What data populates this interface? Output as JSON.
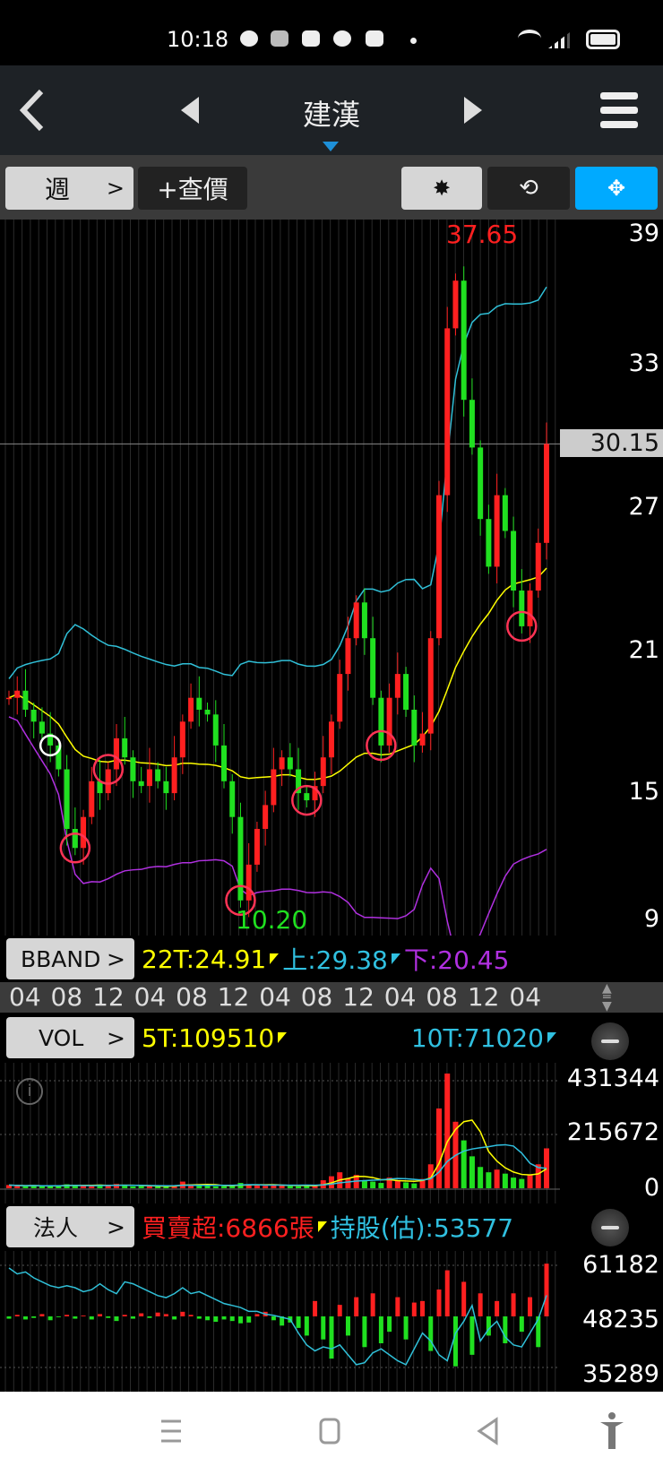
{
  "status_bar": {
    "time": "10:18",
    "icons": [
      "line-icon",
      "cloud-icon",
      "youtube-icon",
      "game-icon",
      "chat-icon",
      "dot-icon"
    ],
    "right_icons": [
      "wifi-icon",
      "signal-icon",
      "battery-icon"
    ]
  },
  "nav": {
    "title": "建漢",
    "back": "back-icon",
    "prev": "prev-stock-icon",
    "next": "next-stock-icon",
    "menu": "menu-icon"
  },
  "toolbar": {
    "period": "週",
    "quote": "+查價",
    "settings": "gear-icon",
    "rotate": "rotate-icon",
    "fullscreen": "fullscreen-icon",
    "accent": "#00aaff"
  },
  "bband": {
    "label": "BBAND",
    "mid": "22T:24.91",
    "upper": "上:29.38",
    "lower": "下:20.45"
  },
  "vol": {
    "label": "VOL",
    "ma5": "5T:109510",
    "ma10": "10T:71020"
  },
  "inst": {
    "label": "法人",
    "net": "買賣超:6866張",
    "holding": "持股(估):53577"
  },
  "date_axis": [
    "04",
    "08",
    "12",
    "04",
    "08",
    "12",
    "04",
    "08",
    "12",
    "04",
    "08",
    "12",
    "04"
  ],
  "chart_data": [
    {
      "type": "candlestick",
      "name": "price",
      "y_ticks": [
        "39",
        "33",
        "27",
        "21",
        "15",
        "9"
      ],
      "ylim": [
        9,
        39.5
      ],
      "high_label": "37.65",
      "low_label": "10.20",
      "current": "30.15",
      "close": [
        19.5,
        19.8,
        19,
        18.5,
        18,
        17.5,
        16.5,
        14,
        13.2,
        14.5,
        16,
        15.5,
        16.5,
        17.8,
        17,
        16,
        15.8,
        16.5,
        16,
        15.5,
        17,
        18.5,
        19.5,
        19,
        18.8,
        17.5,
        16,
        14.5,
        11,
        12.5,
        14,
        15,
        16.5,
        17,
        16.5,
        15.5,
        15.2,
        15.8,
        17,
        18.5,
        20.5,
        22,
        23.5,
        22,
        19.5,
        17.5,
        19.5,
        20.5,
        19,
        17.5,
        18,
        22,
        28,
        35,
        37,
        32,
        30,
        27,
        25,
        28,
        26.5,
        24,
        22.5,
        24,
        26,
        30.15
      ],
      "markers": [
        {
          "index": 5,
          "color": "#ffffff"
        },
        {
          "index": 8,
          "color": "#ff3355"
        },
        {
          "index": 12,
          "color": "#ff3355"
        },
        {
          "index": 28,
          "color": "#ff3355"
        },
        {
          "index": 36,
          "color": "#ff3355"
        },
        {
          "index": 45,
          "color": "#ff3355"
        },
        {
          "index": 62,
          "color": "#ff3355"
        }
      ],
      "colors": {
        "up": "#ff2020",
        "down": "#20e020",
        "mid": "#ffff00",
        "upper": "#30c0d8",
        "lower": "#b030e0"
      }
    },
    {
      "type": "bar",
      "name": "volume",
      "y_ticks": [
        "431344",
        "215672",
        "0"
      ],
      "ylim": [
        0,
        431344
      ],
      "values": [
        12000,
        9000,
        8000,
        11000,
        7000,
        9000,
        10000,
        15000,
        12000,
        9000,
        8000,
        14000,
        10000,
        16000,
        9000,
        7000,
        8000,
        9000,
        7000,
        6000,
        11000,
        25000,
        14000,
        12000,
        9000,
        7000,
        8000,
        12000,
        20000,
        15000,
        10000,
        9000,
        14000,
        12000,
        8000,
        7000,
        9000,
        11000,
        30000,
        45000,
        60000,
        38000,
        50000,
        28000,
        25000,
        20000,
        40000,
        30000,
        22000,
        18000,
        35000,
        90000,
        300000,
        431344,
        250000,
        180000,
        120000,
        80000,
        60000,
        70000,
        55000,
        40000,
        35000,
        50000,
        90000,
        150000
      ]
    },
    {
      "type": "bar+line",
      "name": "institutional",
      "y_ticks": [
        "61182",
        "48235",
        "35289"
      ],
      "ylim": [
        35289,
        61182
      ],
      "holding": [
        60500,
        59000,
        59500,
        58000,
        57000,
        56000,
        55500,
        56000,
        55500,
        54500,
        55000,
        56500,
        55000,
        54000,
        57000,
        56500,
        55500,
        54500,
        53500,
        53000,
        54000,
        55500,
        54000,
        54500,
        53500,
        52500,
        51500,
        51000,
        50500,
        49500,
        49500,
        48800,
        48500,
        48000,
        47500,
        44000,
        41000,
        39500,
        40500,
        40000,
        41000,
        38500,
        36000,
        36500,
        39000,
        40000,
        38500,
        37000,
        36000,
        40000,
        44000,
        42000,
        38500,
        37000,
        44000,
        47000,
        51000,
        42000,
        45000,
        47000,
        43000,
        41000,
        40500,
        44000,
        47500,
        53577
      ],
      "net": [
        -300,
        200,
        -400,
        -200,
        300,
        -500,
        -100,
        200,
        -300,
        100,
        -400,
        300,
        -200,
        -600,
        200,
        -300,
        400,
        -200,
        500,
        300,
        -400,
        600,
        200,
        -300,
        -500,
        -700,
        -400,
        -600,
        -900,
        -800,
        300,
        600,
        -500,
        -1200,
        -800,
        -1500,
        -2500,
        2000,
        -3000,
        -5500,
        1500,
        -2500,
        2500,
        -4000,
        3000,
        -3500,
        -2000,
        2500,
        -3000,
        1800,
        2000,
        -4500,
        3500,
        6000,
        -6500,
        4500,
        -5000,
        3000,
        -2500,
        2000,
        -3500,
        3000,
        -2000,
        2500,
        -4000,
        6866
      ]
    }
  ]
}
